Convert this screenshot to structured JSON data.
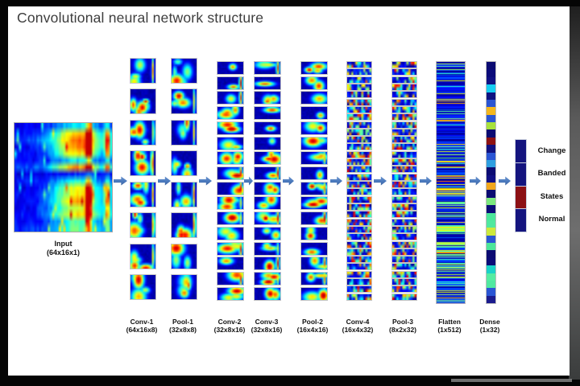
{
  "title": "Convolutional neural network structure",
  "input": {
    "label": "Input",
    "shape": "(64x16x1)"
  },
  "layers": [
    {
      "label": "Conv-1",
      "shape": "(64x16x8)",
      "maps": 8
    },
    {
      "label": "Pool-1",
      "shape": "(32x8x8)",
      "maps": 8
    },
    {
      "label": "Conv-2",
      "shape": "(32x8x16)",
      "maps": 16
    },
    {
      "label": "Conv-3",
      "shape": "(32x8x16)",
      "maps": 16
    },
    {
      "label": "Pool-2",
      "shape": "(16x4x16)",
      "maps": 16
    },
    {
      "label": "Conv-4",
      "shape": "(16x4x32)",
      "maps": 32
    },
    {
      "label": "Pool-3",
      "shape": "(8x2x32)",
      "maps": 32
    },
    {
      "label": "Flatten",
      "shape": "(1x512)",
      "maps": 1
    },
    {
      "label": "Dense",
      "shape": "(1x32)",
      "maps": 32
    }
  ],
  "outputs": [
    {
      "label": "Change",
      "color": "#14147e"
    },
    {
      "label": "Banded",
      "color": "#14147e"
    },
    {
      "label": "States",
      "color": "#8c1014"
    },
    {
      "label": "Normal",
      "color": "#14147e"
    }
  ],
  "dense_cells": [
    "#0b0b72",
    "#0b0b7a",
    "#101084",
    "#17cdf2",
    "#0e1280",
    "#2a55d4",
    "#f4b71c",
    "#2a55d4",
    "#a8e23c",
    "#0b0b72",
    "#8e1212",
    "#101080",
    "#2a55d4",
    "#2e9fe0",
    "#0b0b72",
    "#101084",
    "#f2a71c",
    "#0b0b72",
    "#7ce87e",
    "#0b0b78",
    "#4ce69a",
    "#50e8a0",
    "#cde93c",
    "#2a55d4",
    "#4ce69a",
    "#0b0b72",
    "#0b0b78",
    "#1ad2c8",
    "#55eca2",
    "#50e8a0",
    "#2a55d4",
    "#1b1b8e"
  ],
  "colors": {
    "arrow": "#4a79bd",
    "slide_bg": "#ffffff",
    "frame_bg": "#000000",
    "title_text": "#3d3d3d",
    "map_background": "#0a0a82"
  }
}
